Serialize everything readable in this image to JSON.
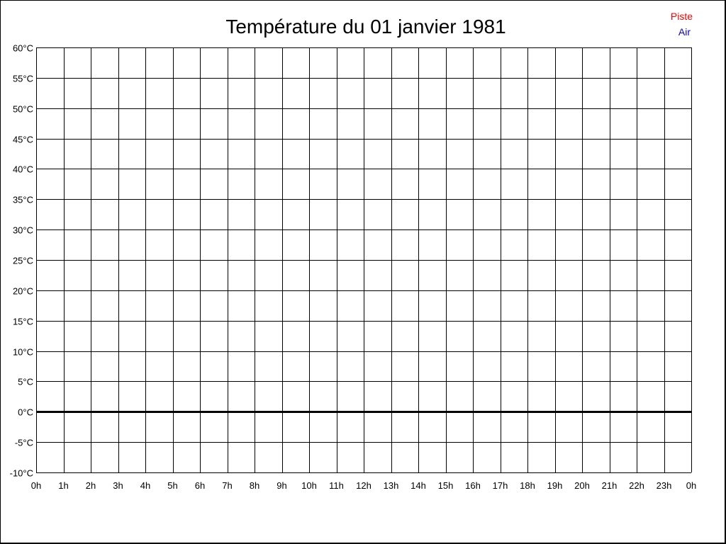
{
  "chart_data": {
    "type": "line",
    "title": "Température du 01 janvier 1981",
    "xlabel": "",
    "ylabel": "",
    "x_tick_labels": [
      "0h",
      "1h",
      "2h",
      "3h",
      "4h",
      "5h",
      "6h",
      "7h",
      "8h",
      "9h",
      "10h",
      "11h",
      "12h",
      "13h",
      "14h",
      "15h",
      "16h",
      "17h",
      "18h",
      "19h",
      "20h",
      "21h",
      "22h",
      "23h",
      "0h"
    ],
    "y_tick_labels": [
      "60°C",
      "55°C",
      "50°C",
      "45°C",
      "40°C",
      "35°C",
      "30°C",
      "25°C",
      "20°C",
      "15°C",
      "10°C",
      "5°C",
      "0°C",
      "-5°C",
      "-10°C"
    ],
    "xlim": [
      0,
      24
    ],
    "ylim": [
      -10,
      60
    ],
    "y_step": 5,
    "grid": true,
    "zero_line_emphasized": true,
    "legend_position": "top-right",
    "series": [
      {
        "name": "Piste",
        "color": "#ff0000",
        "x": [],
        "y": []
      },
      {
        "name": "Air",
        "color": "#0000ff",
        "x": [],
        "y": []
      }
    ]
  }
}
